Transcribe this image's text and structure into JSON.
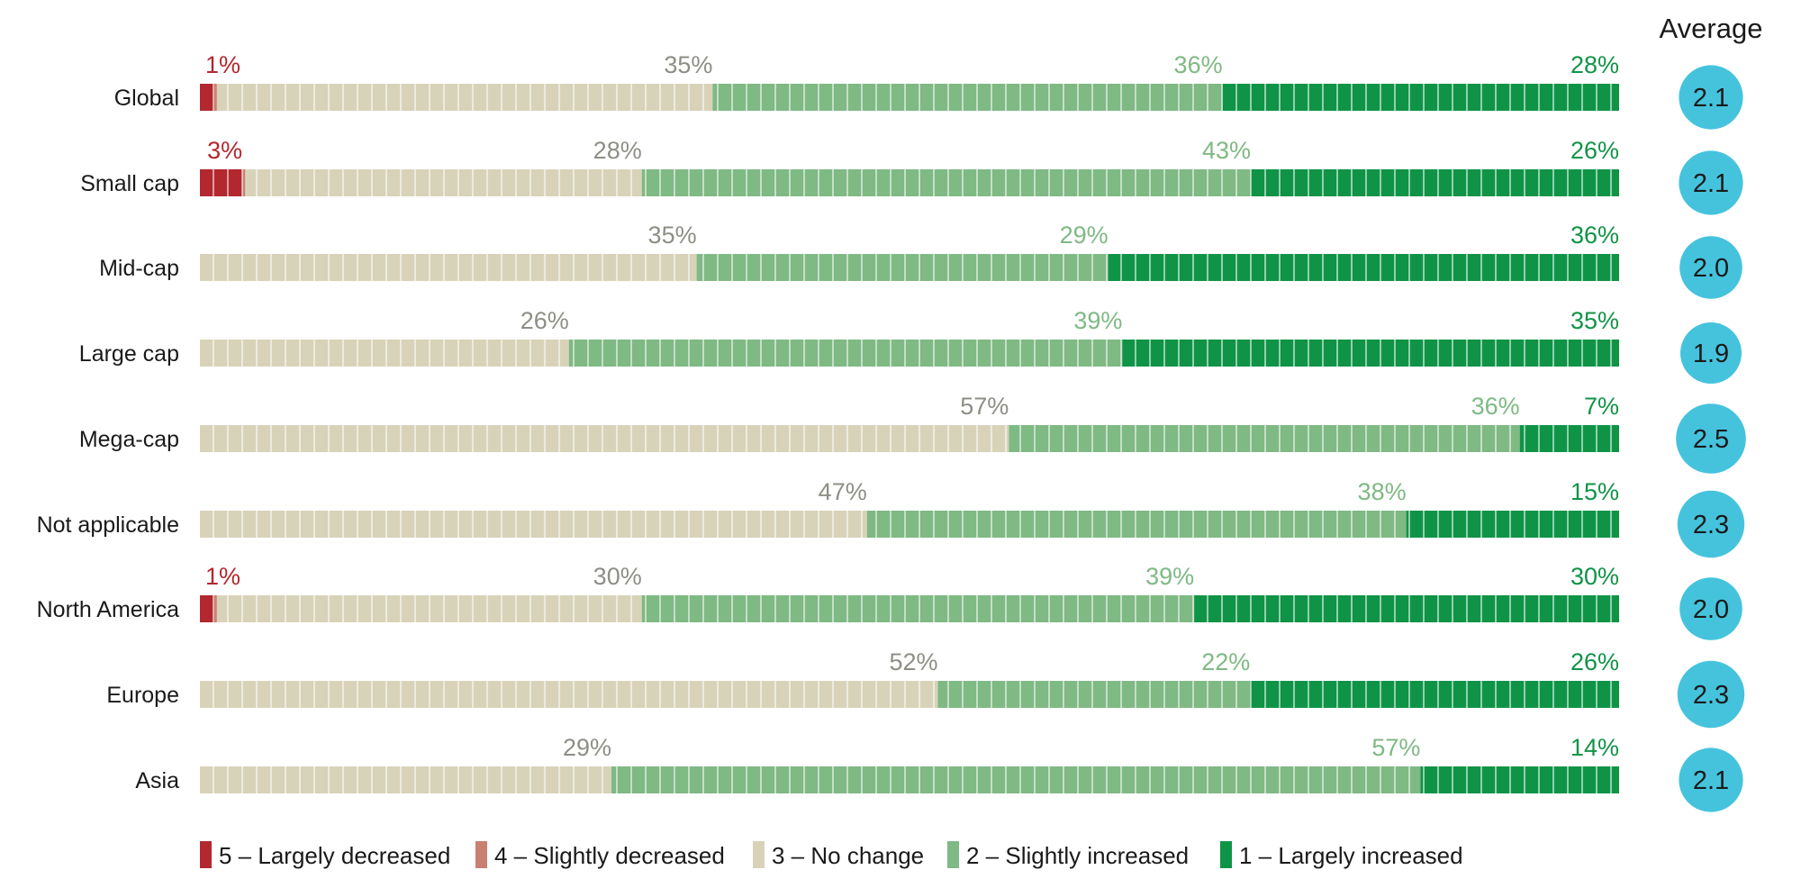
{
  "chart_data": {
    "type": "bar",
    "stacked": true,
    "orientation": "horizontal",
    "normalized_to": 100,
    "categories": [
      "Global",
      "Small cap",
      "Mid-cap",
      "Large cap",
      "Mega-cap",
      "Not applicable",
      "North America",
      "Europe",
      "Asia"
    ],
    "series": [
      {
        "name": "5 – Largely decreased",
        "color": "#b3272f",
        "values": [
          1,
          3,
          0,
          0,
          0,
          0,
          1,
          0,
          0
        ],
        "labels": [
          "1%",
          "3%",
          "",
          "",
          "",
          "",
          "1%",
          "",
          ""
        ]
      },
      {
        "name": "4 – Slightly decreased",
        "color": "#c98070",
        "values": [
          0.2,
          0.2,
          0,
          0,
          0,
          0,
          0.2,
          0,
          0
        ],
        "labels": [
          "",
          "",
          "",
          "",
          "",
          "",
          "",
          "",
          ""
        ]
      },
      {
        "name": "3 – No change",
        "color": "#d8d3b8",
        "values": [
          35,
          28,
          35,
          26,
          57,
          47,
          30,
          52,
          29
        ],
        "labels": [
          "35%",
          "28%",
          "35%",
          "26%",
          "57%",
          "47%",
          "30%",
          "52%",
          "29%"
        ]
      },
      {
        "name": "2 – Slightly increased",
        "color": "#7fb984",
        "values": [
          36,
          43,
          29,
          39,
          36,
          38,
          39,
          22,
          57
        ],
        "labels": [
          "36%",
          "43%",
          "29%",
          "39%",
          "36%",
          "38%",
          "39%",
          "22%",
          "57%"
        ]
      },
      {
        "name": "1 – Largely increased",
        "color": "#0f9447",
        "values": [
          28,
          26,
          36,
          35,
          7,
          15,
          30,
          26,
          14
        ],
        "labels": [
          "28%",
          "26%",
          "36%",
          "35%",
          "7%",
          "15%",
          "30%",
          "26%",
          "14%"
        ]
      }
    ],
    "label_colors": [
      "#b3272f",
      "#c98070",
      "#8e8e86",
      "#7fb984",
      "#0f9447"
    ],
    "average": {
      "title": "Average",
      "values": [
        "2.1",
        "2.1",
        "2.0",
        "1.9",
        "2.5",
        "2.3",
        "2.0",
        "2.3",
        "2.1"
      ],
      "color": "#45c3dd"
    },
    "legend": {
      "position": "bottom-left",
      "items": [
        "5 – Largely decreased",
        "4 – Slightly decreased",
        "3 – No change",
        "2 – Slightly increased",
        "1 – Largely increased"
      ]
    },
    "xlim": [
      0,
      100
    ],
    "grid": false
  }
}
